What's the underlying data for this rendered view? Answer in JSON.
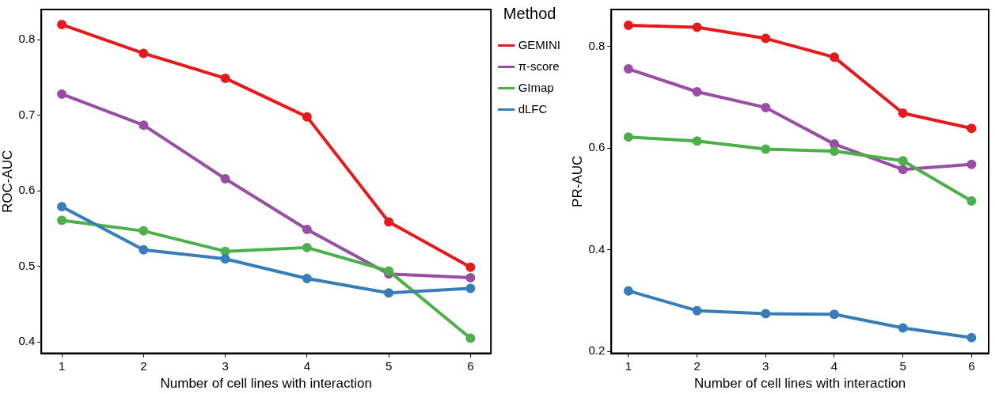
{
  "chart_data": [
    {
      "type": "line",
      "xlabel": "Number of cell lines with interaction",
      "ylabel": "ROC-AUC",
      "legend_title": "Method",
      "legend": "right",
      "marker": "circle",
      "line_style": "solid",
      "x": [
        1,
        2,
        3,
        4,
        5,
        6
      ],
      "xlim": [
        0.75,
        6.25
      ],
      "xticks": [
        1,
        2,
        3,
        4,
        5,
        6
      ],
      "ylim": [
        0.385,
        0.84
      ],
      "yticks": [
        0.4,
        0.5,
        0.6,
        0.7,
        0.8
      ],
      "series": [
        {
          "name": "GEMINI",
          "color": "#e41a1c",
          "values": [
            0.82,
            0.782,
            0.749,
            0.698,
            0.559,
            0.499
          ]
        },
        {
          "name": "π-score",
          "color": "#984ea3",
          "values": [
            0.728,
            0.687,
            0.616,
            0.549,
            0.49,
            0.485
          ]
        },
        {
          "name": "GImap",
          "color": "#4daf4a",
          "values": [
            0.561,
            0.547,
            0.52,
            0.525,
            0.494,
            0.405
          ]
        },
        {
          "name": "dLFC",
          "color": "#377eb8",
          "values": [
            0.579,
            0.522,
            0.51,
            0.484,
            0.465,
            0.471
          ]
        }
      ]
    },
    {
      "type": "line",
      "xlabel": "Number of cell lines with interaction",
      "ylabel": "PR-AUC",
      "marker": "circle",
      "line_style": "solid",
      "x": [
        1,
        2,
        3,
        4,
        5,
        6
      ],
      "xlim": [
        0.75,
        6.25
      ],
      "xticks": [
        1,
        2,
        3,
        4,
        5,
        6
      ],
      "ylim": [
        0.196,
        0.873
      ],
      "yticks": [
        0.2,
        0.4,
        0.6,
        0.8
      ],
      "series": [
        {
          "color": "#e41a1c",
          "values": [
            0.842,
            0.838,
            0.816,
            0.779,
            0.669,
            0.639
          ]
        },
        {
          "color": "#984ea3",
          "values": [
            0.756,
            0.711,
            0.68,
            0.608,
            0.558,
            0.568
          ]
        },
        {
          "color": "#4daf4a",
          "values": [
            0.622,
            0.614,
            0.598,
            0.594,
            0.575,
            0.496
          ]
        },
        {
          "color": "#377eb8",
          "values": [
            0.319,
            0.28,
            0.274,
            0.273,
            0.246,
            0.227
          ]
        }
      ]
    }
  ]
}
